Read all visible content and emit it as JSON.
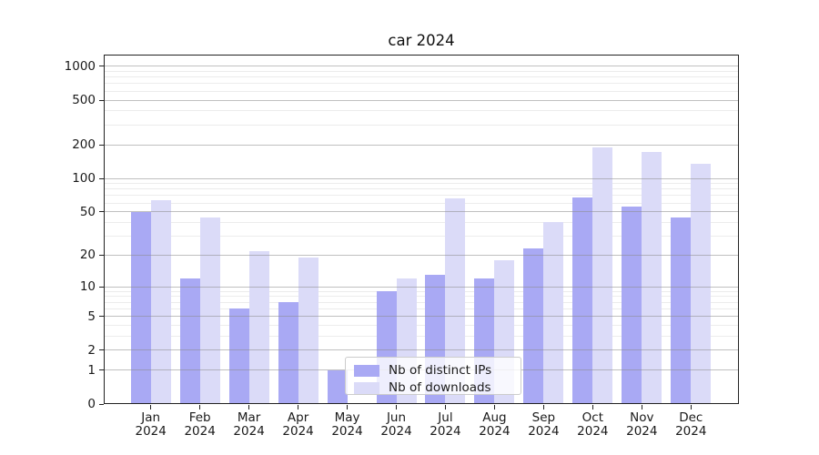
{
  "chart_data": {
    "type": "bar",
    "title": "car 2024",
    "months": [
      "Jan",
      "Feb",
      "Mar",
      "Apr",
      "May",
      "Jun",
      "Jul",
      "Aug",
      "Sep",
      "Oct",
      "Nov",
      "Dec"
    ],
    "year": "2024",
    "series": [
      {
        "name": "Nb of distinct IPs",
        "color": "#a9a9f4",
        "values": [
          50,
          12,
          6,
          7,
          1,
          9,
          13,
          12,
          23,
          67,
          56,
          44
        ]
      },
      {
        "name": "Nb of downloads",
        "color": "#dbdbf8",
        "values": [
          64,
          44,
          22,
          19,
          0,
          12,
          66,
          18,
          40,
          190,
          174,
          134
        ]
      }
    ],
    "y_axis": {
      "scale": "log1p",
      "ticks": [
        0,
        1,
        2,
        5,
        10,
        20,
        50,
        100,
        200,
        500,
        1000
      ],
      "minor_ticks": [
        3,
        4,
        6,
        7,
        8,
        9,
        30,
        40,
        60,
        70,
        80,
        90,
        300,
        400,
        600,
        700,
        800,
        900
      ],
      "range": [
        0,
        1000
      ]
    },
    "grid": true,
    "legend": {
      "position": "lower-center"
    },
    "colors": {
      "background": "#ffffff",
      "grid_major": "#b4b4b4",
      "grid_minor": "#ececec",
      "axis": "#222222"
    }
  }
}
